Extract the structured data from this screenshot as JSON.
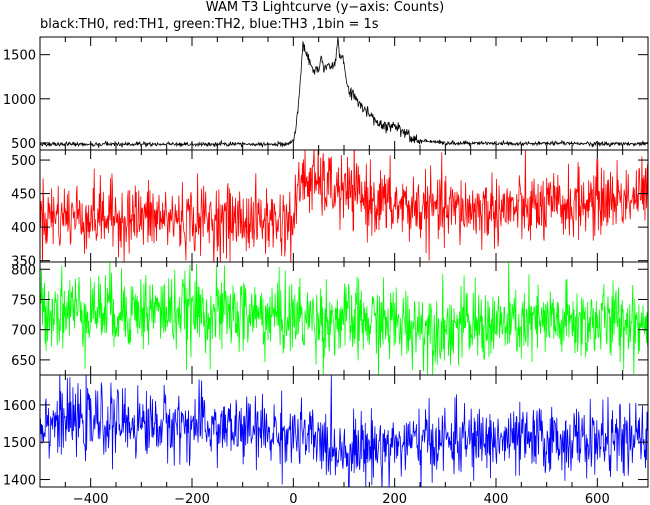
{
  "title": "WAM T3 Lightcurve (y−axis: Counts)",
  "subtitle": "black:TH0, red:TH1, green:TH2, blue:TH3 ,1bin = 1s",
  "chart_data": {
    "type": "line",
    "xlabel": "",
    "ylabel": "",
    "xlim": [
      -500,
      700
    ],
    "x_ticks": [
      -400,
      -200,
      0,
      200,
      400,
      600
    ],
    "x_tick_labels": [
      "−400",
      "−200",
      "0",
      "200",
      "400",
      "600"
    ],
    "bin_seconds": 1,
    "panels": [
      {
        "name": "TH0",
        "color": "#000000",
        "ylim": [
          420,
          1700
        ],
        "y_ticks": [
          500,
          1000,
          1500
        ],
        "y_tick_labels": [
          "500",
          "1000",
          "1500"
        ],
        "background": 485,
        "noise": 12,
        "profile": [
          [
            -500,
            485
          ],
          [
            -10,
            485
          ],
          [
            0,
            530
          ],
          [
            5,
            620
          ],
          [
            15,
            1250
          ],
          [
            25,
            1500
          ],
          [
            40,
            1320
          ],
          [
            60,
            1350
          ],
          [
            80,
            1370
          ],
          [
            95,
            1450
          ],
          [
            110,
            1100
          ],
          [
            130,
            950
          ],
          [
            150,
            820
          ],
          [
            175,
            680
          ],
          [
            200,
            700
          ],
          [
            215,
            640
          ],
          [
            240,
            540
          ],
          [
            300,
            495
          ],
          [
            700,
            490
          ]
        ],
        "peaks": [
          [
            20,
            1700
          ],
          [
            55,
            1500
          ],
          [
            88,
            1700
          ],
          [
            98,
            1500
          ]
        ]
      },
      {
        "name": "TH1",
        "color": "#ff0000",
        "ylim": [
          348,
          515
        ],
        "y_ticks": [
          350,
          400,
          450,
          500
        ],
        "y_tick_labels": [
          "350",
          "400",
          "450",
          "500"
        ],
        "background": 415,
        "noise": 26,
        "profile": [
          [
            -500,
            418
          ],
          [
            0,
            408
          ],
          [
            15,
            472
          ],
          [
            50,
            465
          ],
          [
            100,
            452
          ],
          [
            200,
            432
          ],
          [
            300,
            425
          ],
          [
            500,
            428
          ],
          [
            700,
            450
          ]
        ]
      },
      {
        "name": "TH2",
        "color": "#00ff00",
        "ylim": [
          625,
          812
        ],
        "y_ticks": [
          650,
          700,
          750,
          800
        ],
        "y_tick_labels": [
          "650",
          "700",
          "750",
          "800"
        ],
        "background": 720,
        "noise": 32,
        "profile": [
          [
            -500,
            735
          ],
          [
            -200,
            730
          ],
          [
            0,
            720
          ],
          [
            300,
            705
          ],
          [
            700,
            715
          ]
        ]
      },
      {
        "name": "TH3",
        "color": "#0000ff",
        "ylim": [
          1380,
          1680
        ],
        "y_ticks": [
          1400,
          1500,
          1600
        ],
        "y_tick_labels": [
          "1400",
          "1500",
          "1600"
        ],
        "background": 1540,
        "noise": 45,
        "profile": [
          [
            -500,
            1560
          ],
          [
            -200,
            1545
          ],
          [
            0,
            1520
          ],
          [
            100,
            1480
          ],
          [
            300,
            1505
          ],
          [
            700,
            1505
          ]
        ]
      }
    ]
  }
}
